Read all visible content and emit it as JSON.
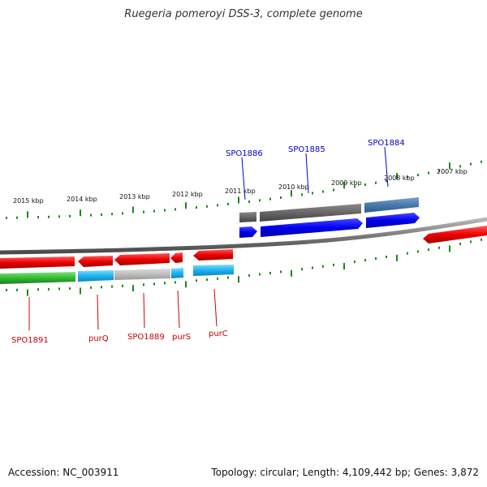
{
  "title": "Ruegeria pomeroyi DSS-3, complete genome",
  "accession": "Accession: NC_003911",
  "summary": "Topology: circular; Length: 4,109,442 bp; Genes: 3,872",
  "ruler_labels": [
    "2015 kbp",
    "2014 kbp",
    "2013 kbp",
    "2012 kbp",
    "2011 kbp",
    "2010 kbp",
    "2009 kbp",
    "2008 kbp",
    "2007 kbp"
  ],
  "top_gene_labels": [
    "SPO1886",
    "SPO1885",
    "SPO1884"
  ],
  "bottom_gene_labels": [
    "SPO1891",
    "purQ",
    "SPO1889",
    "purS",
    "purC"
  ],
  "colors": {
    "forward_gene": "#0000ee",
    "reverse_gene": "#ee0000",
    "tick": "#1a8a1a",
    "backbone": "#7a7a7a"
  }
}
